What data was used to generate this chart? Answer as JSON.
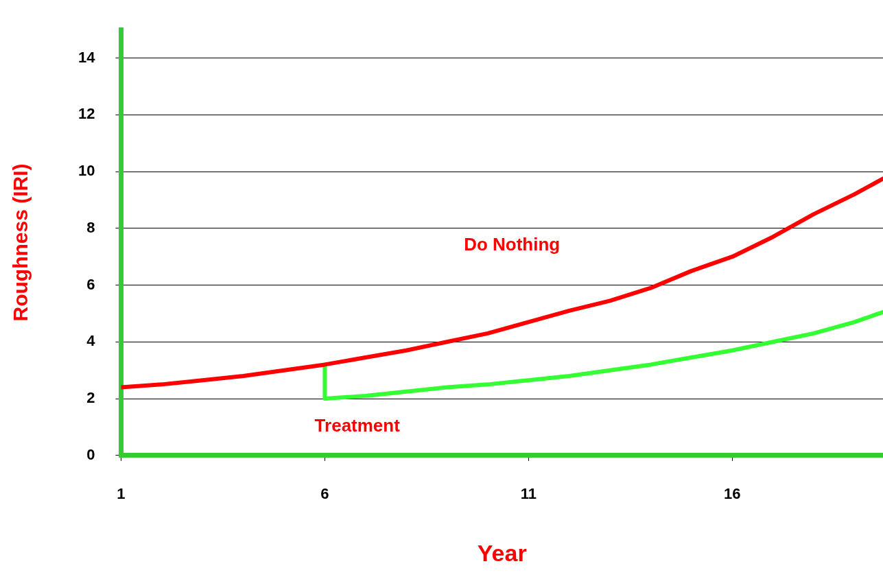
{
  "chart_data": {
    "type": "line",
    "xlabel": "Year",
    "ylabel": "Roughness (IRI)",
    "xlim": [
      1,
      19.7
    ],
    "xticks": [
      1,
      6,
      11,
      16
    ],
    "ylim": [
      0,
      15
    ],
    "yticks": [
      0,
      2,
      4,
      6,
      8,
      10,
      12,
      14
    ],
    "grid": "y",
    "legend": false,
    "marker": "none",
    "line_style": "solid",
    "series": [
      {
        "name": "Do Nothing",
        "color": "#ff0000",
        "x": [
          1,
          2,
          3,
          4,
          5,
          6,
          7,
          8,
          9,
          10,
          11,
          12,
          13,
          14,
          15,
          16,
          17,
          18,
          19,
          19.7
        ],
        "values": [
          2.4,
          2.5,
          2.65,
          2.8,
          3.0,
          3.2,
          3.45,
          3.7,
          4.0,
          4.3,
          4.7,
          5.1,
          5.45,
          5.9,
          6.5,
          7.0,
          7.7,
          8.5,
          9.2,
          9.75
        ]
      },
      {
        "color": "#33ff33",
        "x": [
          6,
          6,
          7,
          8,
          9,
          10,
          11,
          12,
          13,
          14,
          15,
          16,
          17,
          18,
          19,
          19.7
        ],
        "values": [
          3.2,
          2.0,
          2.1,
          2.25,
          2.4,
          2.5,
          2.65,
          2.8,
          3.0,
          3.2,
          3.45,
          3.7,
          4.0,
          4.3,
          4.7,
          5.05
        ]
      }
    ],
    "annotations": [
      "Treatment"
    ]
  }
}
